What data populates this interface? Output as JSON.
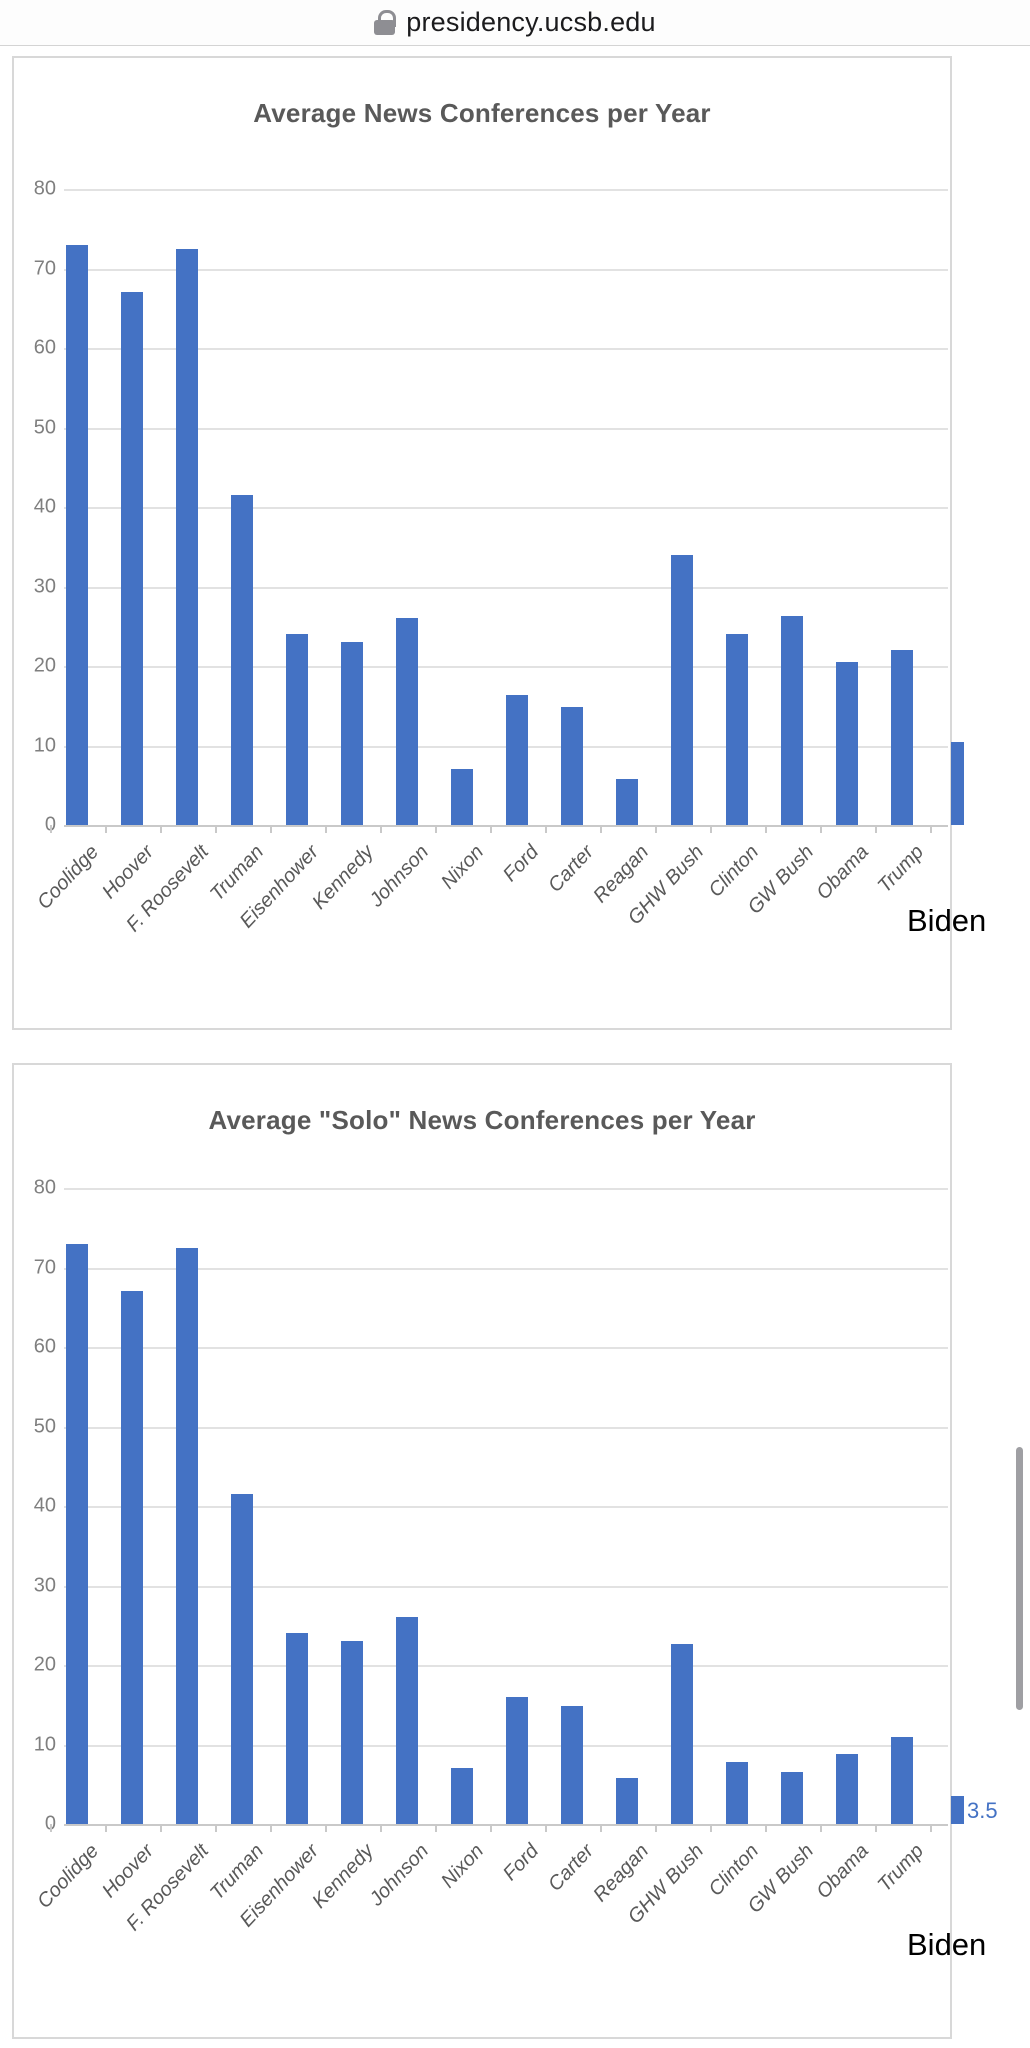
{
  "browser": {
    "url": "presidency.ucsb.edu",
    "lock_icon": "lock-icon"
  },
  "colors": {
    "bar": "#4472C4",
    "title_text": "#595959",
    "axis_text": "#7f7f7f",
    "biden_annotation": "#000000",
    "value_label": "#4472C4"
  },
  "chart_data": [
    {
      "type": "bar",
      "title": "Average News Conferences per Year",
      "categories": [
        "Coolidge",
        "Hoover",
        "F. Roosevelt",
        "Truman",
        "Eisenhower",
        "Kennedy",
        "Johnson",
        "Nixon",
        "Ford",
        "Carter",
        "Reagan",
        "GHW Bush",
        "Clinton",
        "GW Bush",
        "Obama",
        "Trump",
        "Biden"
      ],
      "values": [
        73,
        67,
        72.5,
        41.5,
        24,
        23,
        26,
        7,
        16.3,
        14.8,
        5.8,
        34,
        24,
        26.3,
        20.5,
        22,
        10.5
      ],
      "xlabel": "",
      "ylabel": "",
      "ylim": [
        0,
        80
      ],
      "yticks": [
        0,
        10,
        20,
        30,
        40,
        50,
        60,
        70,
        80
      ],
      "grid": "horizontal",
      "legend": "none",
      "annotations": [
        {
          "text": "Biden",
          "target": "last-bar"
        }
      ]
    },
    {
      "type": "bar",
      "title": "Average \"Solo\" News Conferences per Year",
      "categories": [
        "Coolidge",
        "Hoover",
        "F. Roosevelt",
        "Truman",
        "Eisenhower",
        "Kennedy",
        "Johnson",
        "Nixon",
        "Ford",
        "Carter",
        "Reagan",
        "GHW Bush",
        "Clinton",
        "GW Bush",
        "Obama",
        "Trump",
        "Biden"
      ],
      "values": [
        73,
        67,
        72.5,
        41.5,
        24,
        23,
        26,
        7,
        16,
        14.8,
        5.8,
        22.7,
        7.8,
        6.5,
        8.8,
        11,
        3.5
      ],
      "xlabel": "",
      "ylabel": "",
      "ylim": [
        0,
        80
      ],
      "yticks": [
        0,
        10,
        20,
        30,
        40,
        50,
        60,
        70,
        80
      ],
      "grid": "horizontal",
      "legend": "none",
      "annotations": [
        {
          "text": "Biden",
          "target": "last-bar"
        },
        {
          "text": "3.5",
          "target": "last-bar-value"
        }
      ]
    }
  ]
}
